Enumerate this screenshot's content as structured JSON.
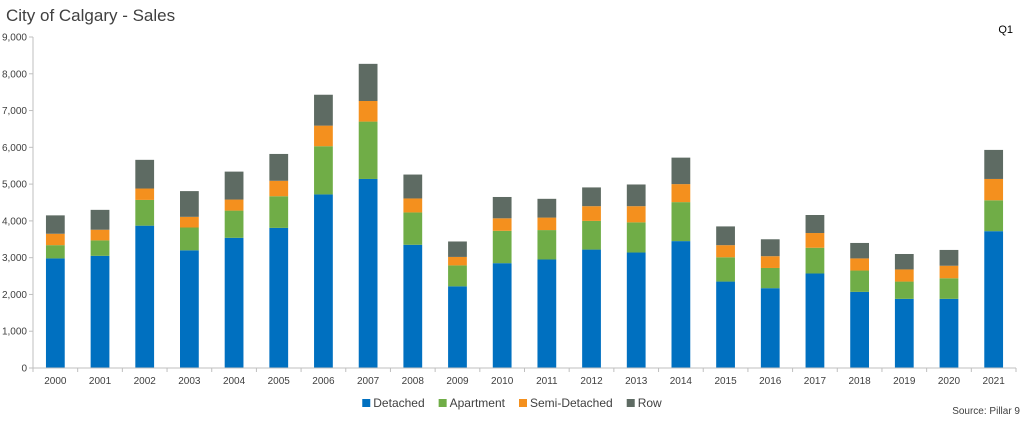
{
  "chart_data": {
    "type": "bar",
    "stacked": true,
    "title": "City of Calgary - Sales",
    "subtitle": "Q1",
    "source": "Source: Pillar 9",
    "categories": [
      "2000",
      "2001",
      "2002",
      "2003",
      "2004",
      "2005",
      "2006",
      "2007",
      "2008",
      "2009",
      "2010",
      "2011",
      "2012",
      "2013",
      "2014",
      "2015",
      "2016",
      "2017",
      "2018",
      "2019",
      "2020",
      "2021"
    ],
    "ylim": [
      0,
      9000
    ],
    "yticks": [
      0,
      1000,
      2000,
      3000,
      4000,
      5000,
      6000,
      7000,
      8000,
      9000
    ],
    "ytick_labels": [
      "0",
      "1,000",
      "2,000",
      "3,000",
      "4,000",
      "5,000",
      "6,000",
      "7,000",
      "8,000",
      "9,000"
    ],
    "grid": false,
    "legend_position": "bottom",
    "series": [
      {
        "name": "Detached",
        "color": "#0070C0",
        "values": [
          2980,
          3050,
          3870,
          3200,
          3540,
          3810,
          4720,
          5140,
          3350,
          2220,
          2850,
          2950,
          3220,
          3140,
          3450,
          2350,
          2170,
          2570,
          2070,
          1880,
          1880,
          3720
        ]
      },
      {
        "name": "Apartment",
        "color": "#70AD47",
        "values": [
          360,
          420,
          700,
          620,
          740,
          860,
          1310,
          1560,
          880,
          570,
          880,
          800,
          780,
          820,
          1060,
          660,
          550,
          700,
          580,
          470,
          560,
          840
        ]
      },
      {
        "name": "Semi-Detached",
        "color": "#F4901E",
        "values": [
          310,
          290,
          310,
          290,
          300,
          420,
          560,
          560,
          380,
          230,
          340,
          340,
          400,
          440,
          490,
          330,
          320,
          400,
          330,
          330,
          340,
          580
        ]
      },
      {
        "name": "Row",
        "color": "#5E6B63",
        "values": [
          500,
          540,
          780,
          700,
          760,
          730,
          840,
          1010,
          650,
          420,
          580,
          510,
          510,
          590,
          720,
          510,
          460,
          490,
          420,
          420,
          430,
          790
        ]
      }
    ]
  }
}
